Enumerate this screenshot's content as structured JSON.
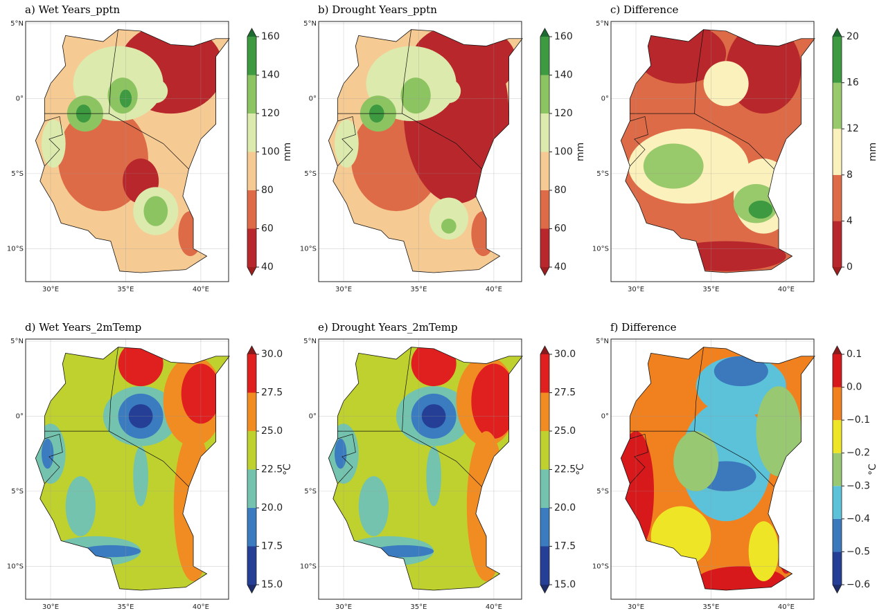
{
  "lon_lim": [
    28.34,
    41.85
  ],
  "lat_lim": [
    -12.2,
    5.14
  ],
  "panels": [
    {
      "title": "a) Wet Years_pptn",
      "lonticks": [
        {
          "value": 30,
          "label": "30°E"
        },
        {
          "value": 35,
          "label": "35°E"
        },
        {
          "value": 40,
          "label": "40°E"
        }
      ],
      "latticks": [
        {
          "value": 5,
          "label": "5°N"
        },
        {
          "value": 0,
          "label": "0°"
        },
        {
          "value": -5,
          "label": "5°S"
        },
        {
          "value": -10,
          "label": "10°S"
        }
      ],
      "colorbar": {
        "label": "mm",
        "ticks": [
          40,
          60,
          80,
          100,
          120,
          140,
          160
        ],
        "colors": [
          "#b8272b",
          "#de6b47",
          "#f6ca93",
          "#dcebad",
          "#8dc462",
          "#3d9a41"
        ],
        "extend_colors": [
          "#9e1d1f",
          "#1c6b30"
        ]
      }
    },
    {
      "title": "b) Drought Years_pptn",
      "lonticks": [
        {
          "value": 30,
          "label": "30°E"
        },
        {
          "value": 35,
          "label": "35°E"
        },
        {
          "value": 40,
          "label": "40°E"
        }
      ],
      "latticks": [
        {
          "value": 5,
          "label": "5°N"
        },
        {
          "value": 0,
          "label": "0°"
        },
        {
          "value": -5,
          "label": "5°S"
        },
        {
          "value": -10,
          "label": "10°S"
        }
      ],
      "colorbar": {
        "label": "mm",
        "ticks": [
          40,
          60,
          80,
          100,
          120,
          140,
          160
        ],
        "colors": [
          "#b8272b",
          "#de6b47",
          "#f6ca93",
          "#dcebad",
          "#8dc462",
          "#3d9a41"
        ],
        "extend_colors": [
          "#9e1d1f",
          "#1c6b30"
        ]
      }
    },
    {
      "title": "c) Difference",
      "lonticks": [
        {
          "value": 30,
          "label": "30°E"
        },
        {
          "value": 35,
          "label": "35°E"
        },
        {
          "value": 40,
          "label": "40°E"
        }
      ],
      "latticks": [
        {
          "value": 5,
          "label": "5°N"
        },
        {
          "value": 0,
          "label": "0°"
        },
        {
          "value": -5,
          "label": "5°S"
        },
        {
          "value": -10,
          "label": "10°S"
        }
      ],
      "colorbar": {
        "label": "mm",
        "ticks": [
          0,
          4,
          8,
          12,
          16,
          20
        ],
        "colors": [
          "#b8272b",
          "#de6b47",
          "#fbf1bc",
          "#98c96a",
          "#3d9a41"
        ],
        "extend_colors": [
          "#9e1d1f",
          "#1c6b30"
        ]
      }
    },
    {
      "title": "d) Wet Years_2mTemp",
      "lonticks": [
        {
          "value": 30,
          "label": "30°E"
        },
        {
          "value": 35,
          "label": "35°E"
        },
        {
          "value": 40,
          "label": "40°E"
        }
      ],
      "latticks": [
        {
          "value": 5,
          "label": "5°N"
        },
        {
          "value": 0,
          "label": "0°"
        },
        {
          "value": -5,
          "label": "5°S"
        },
        {
          "value": -10,
          "label": "10°S"
        }
      ],
      "colorbar": {
        "label": "°C",
        "ticks": [
          {
            "value": 15,
            "label": "15.0"
          },
          17.5,
          {
            "value": 20,
            "label": "20.0"
          },
          22.5,
          {
            "value": 25,
            "label": "25.0"
          },
          27.5,
          {
            "value": 30,
            "label": "30.0"
          }
        ],
        "colors": [
          "#243f95",
          "#3b7cc0",
          "#74c3ae",
          "#bfd12e",
          "#f18c22",
          "#e0201f"
        ],
        "extend_colors": [
          "#1d2d6b",
          "#8b1a1a"
        ]
      }
    },
    {
      "title": "e) Drought Years_2mTemp",
      "lonticks": [
        {
          "value": 30,
          "label": "30°E"
        },
        {
          "value": 35,
          "label": "35°E"
        },
        {
          "value": 40,
          "label": "40°E"
        }
      ],
      "latticks": [
        {
          "value": 5,
          "label": "5°N"
        },
        {
          "value": 0,
          "label": "0°"
        },
        {
          "value": -5,
          "label": "5°S"
        },
        {
          "value": -10,
          "label": "10°S"
        }
      ],
      "colorbar": {
        "label": "°C",
        "ticks": [
          {
            "value": 15,
            "label": "15.0"
          },
          17.5,
          {
            "value": 20,
            "label": "20.0"
          },
          22.5,
          {
            "value": 25,
            "label": "25.0"
          },
          27.5,
          {
            "value": 30,
            "label": "30.0"
          }
        ],
        "colors": [
          "#243f95",
          "#3b7cc0",
          "#74c3ae",
          "#bfd12e",
          "#f18c22",
          "#e0201f"
        ],
        "extend_colors": [
          "#1d2d6b",
          "#8b1a1a"
        ]
      }
    },
    {
      "title": "f) Difference",
      "lonticks": [
        {
          "value": 30,
          "label": "30°E"
        },
        {
          "value": 35,
          "label": "35°E"
        },
        {
          "value": 40,
          "label": "40°E"
        }
      ],
      "latticks": [
        {
          "value": 5,
          "label": "5°N"
        },
        {
          "value": 0,
          "label": "0°"
        },
        {
          "value": -5,
          "label": "5°S"
        },
        {
          "value": -10,
          "label": "10°S"
        }
      ],
      "colorbar": {
        "label": "°C",
        "ticks": [
          {
            "value": -0.6,
            "label": "−0.6"
          },
          {
            "value": -0.5,
            "label": "−0.5"
          },
          {
            "value": -0.4,
            "label": "−0.4"
          },
          {
            "value": -0.3,
            "label": "−0.3"
          },
          {
            "value": -0.2,
            "label": "−0.2"
          },
          {
            "value": -0.1,
            "label": "−0.1"
          },
          {
            "value": 0,
            "label": "0.0"
          },
          0.1
        ],
        "colors": [
          "#243f95",
          "#3b78bc",
          "#5bc2da",
          "#98c872",
          "#eee526",
          "#f1811f",
          "#d7191c"
        ],
        "extend_colors": [
          "#1d2d6b",
          "#8b1a1a"
        ]
      }
    }
  ]
}
